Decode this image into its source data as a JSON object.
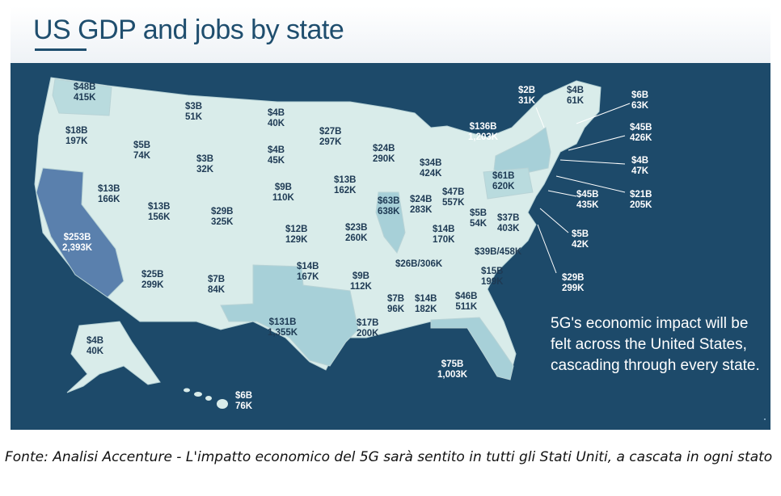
{
  "title": "US GDP and jobs by state",
  "note": "5G's economic impact will be felt across the United States, cascading through every state.",
  "caption": "Fonte: Analisi Accenture - L'impatto economico del 5G sarà sentito in tutti gli Stati Uniti, a cascata in ogni stato",
  "colors": {
    "background": "#1d4a6a",
    "land_light": "#d9ecea",
    "land_mid": "#a7d0d8",
    "land_dark": "#5a80ad",
    "title": "#1f4e6e"
  },
  "states": [
    {
      "gdp": "$48B",
      "jobs": "415K"
    },
    {
      "gdp": "$18B",
      "jobs": "197K"
    },
    {
      "gdp": "$253B",
      "jobs": "2,393K"
    },
    {
      "gdp": "$13B",
      "jobs": "166K"
    },
    {
      "gdp": "$5B",
      "jobs": "74K"
    },
    {
      "gdp": "$3B",
      "jobs": "51K"
    },
    {
      "gdp": "$3B",
      "jobs": "32K"
    },
    {
      "gdp": "$13B",
      "jobs": "156K"
    },
    {
      "gdp": "$29B",
      "jobs": "325K"
    },
    {
      "gdp": "$25B",
      "jobs": "299K"
    },
    {
      "gdp": "$7B",
      "jobs": "84K"
    },
    {
      "gdp": "$4B",
      "jobs": "40K"
    },
    {
      "gdp": "$4B",
      "jobs": "45K"
    },
    {
      "gdp": "$9B",
      "jobs": "110K"
    },
    {
      "gdp": "$12B",
      "jobs": "129K"
    },
    {
      "gdp": "$14B",
      "jobs": "167K"
    },
    {
      "gdp": "$131B",
      "jobs": "1,355K"
    },
    {
      "gdp": "$27B",
      "jobs": "297K"
    },
    {
      "gdp": "$13B",
      "jobs": "162K"
    },
    {
      "gdp": "$23B",
      "jobs": "260K"
    },
    {
      "gdp": "$9B",
      "jobs": "112K"
    },
    {
      "gdp": "$17B",
      "jobs": "200K"
    },
    {
      "gdp": "$24B",
      "jobs": "290K"
    },
    {
      "gdp": "$63B",
      "jobs": "638K"
    },
    {
      "gdp": "$34B",
      "jobs": "424K"
    },
    {
      "gdp": "$24B",
      "jobs": "283K"
    },
    {
      "gdp": "$47B",
      "jobs": "557K"
    },
    {
      "gdp": "$14B",
      "jobs": "170K"
    },
    {
      "gdp": "$26B/306K",
      "jobs": ""
    },
    {
      "gdp": "$7B",
      "jobs": "96K"
    },
    {
      "gdp": "$14B",
      "jobs": "182K"
    },
    {
      "gdp": "$46B",
      "jobs": "511K"
    },
    {
      "gdp": "$75B",
      "jobs": "1,003K"
    },
    {
      "gdp": "$15B",
      "jobs": "199K"
    },
    {
      "gdp": "$39B/458K",
      "jobs": ""
    },
    {
      "gdp": "$37B",
      "jobs": "403K"
    },
    {
      "gdp": "$5B",
      "jobs": "54K"
    },
    {
      "gdp": "$61B",
      "jobs": "620K"
    },
    {
      "gdp": "$136B",
      "jobs": "1,203K"
    },
    {
      "gdp": "$2B",
      "jobs": "31K"
    },
    {
      "gdp": "$4B",
      "jobs": "61K"
    },
    {
      "gdp": "$6B",
      "jobs": "63K"
    },
    {
      "gdp": "$45B",
      "jobs": "426K"
    },
    {
      "gdp": "$4B",
      "jobs": "47K"
    },
    {
      "gdp": "$21B",
      "jobs": "205K"
    },
    {
      "gdp": "$45B",
      "jobs": "435K"
    },
    {
      "gdp": "$5B",
      "jobs": "42K"
    },
    {
      "gdp": "$29B",
      "jobs": "299K"
    },
    {
      "gdp": "$4B",
      "jobs": "40K"
    },
    {
      "gdp": "$6B",
      "jobs": "76K"
    }
  ]
}
